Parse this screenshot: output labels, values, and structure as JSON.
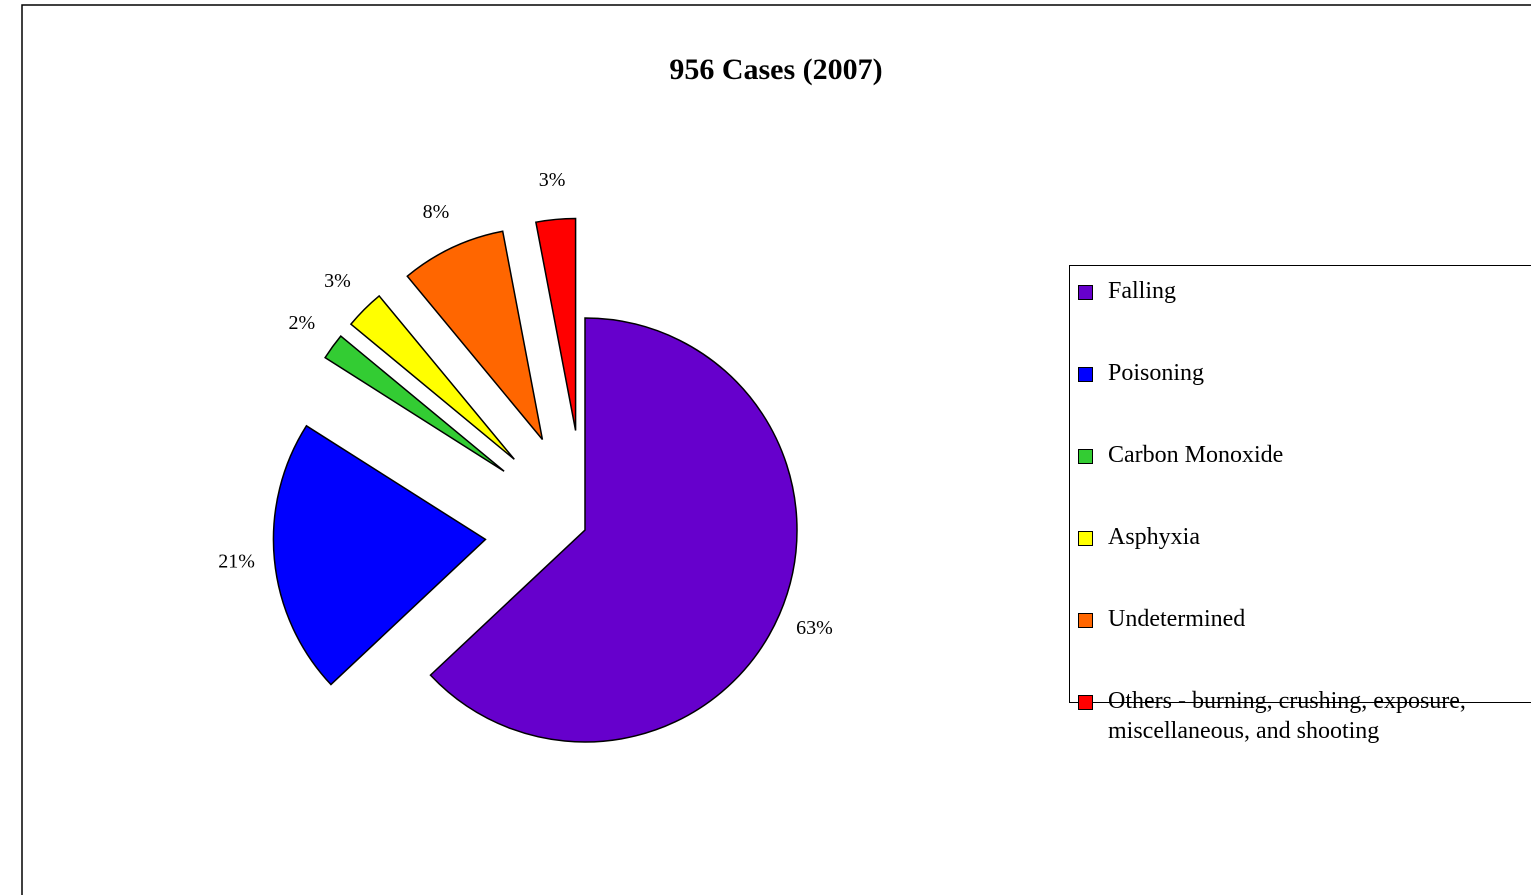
{
  "chart_data": {
    "type": "pie",
    "title": "956 Cases (2007)",
    "categories": [
      "Falling",
      "Poisoning",
      "Carbon Monoxide",
      "Asphyxia",
      "Undetermined",
      "Others - burning, crushing, exposure, miscellaneous, and shooting"
    ],
    "values": [
      63,
      21,
      2,
      3,
      8,
      3
    ],
    "value_labels": [
      "63%",
      "21%",
      "2%",
      "3%",
      "8%",
      "3%"
    ],
    "colors": [
      "#6600cc",
      "#0000ff",
      "#33cc33",
      "#ffff00",
      "#ff6600",
      "#ff0000"
    ],
    "legend": "right"
  }
}
